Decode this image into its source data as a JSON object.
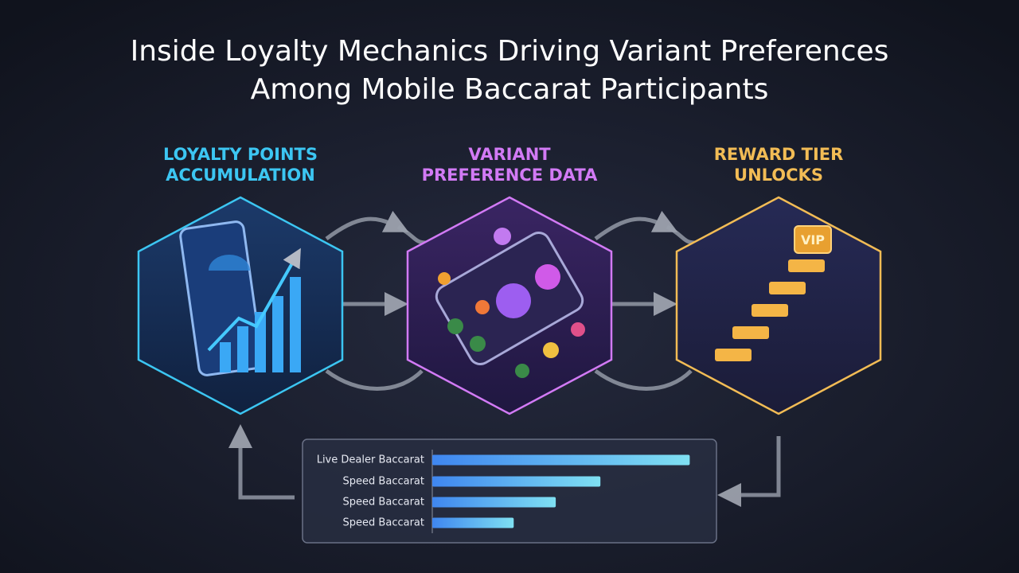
{
  "header": {
    "title": [
      "Inside Loyalty Mechanics Driving Variant Preferences",
      "Among Mobile Baccarat Participants"
    ]
  },
  "nodes": [
    {
      "label": [
        "LOYALTY POINTS",
        "ACCUMULATION"
      ],
      "color": "#3cc6f2"
    },
    {
      "label": [
        "VARIANT",
        "PREFERENCE DATA"
      ],
      "color": "#d27af5"
    },
    {
      "label": [
        "REWARD TIER",
        "UNLOCKS"
      ],
      "color": "#f2bc55"
    }
  ],
  "chart_data": {
    "type": "bar",
    "orientation": "horizontal",
    "categories": [
      "Live Dealer Baccarat",
      "Speed Baccarat",
      "Speed Baccarat",
      "Speed Baccarat"
    ],
    "values": [
      98,
      64,
      47,
      31
    ],
    "xlim": [
      0,
      100
    ],
    "color": "#4aa8f0"
  }
}
